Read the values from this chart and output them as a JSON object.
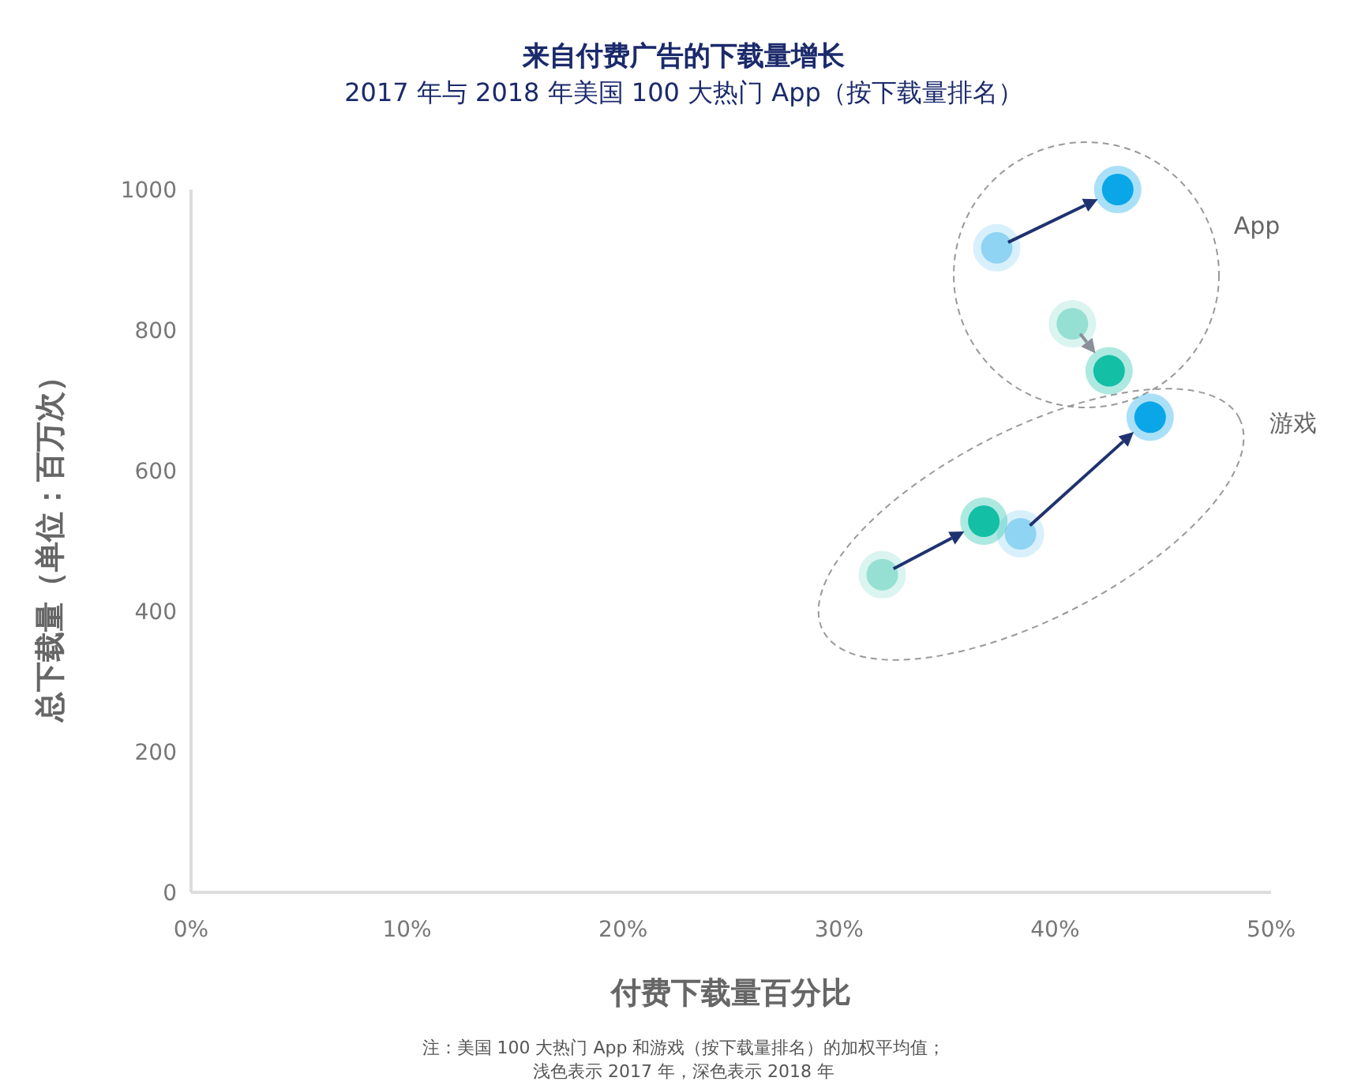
{
  "chart_data": {
    "type": "scatter",
    "title": "来自付费广告的下载量增长",
    "subtitle": "2017 年与 2018 年美国 100 大热门 App（按下载量排名）",
    "xlabel": "付费下载量百分比",
    "ylabel": "总下载量（单位：百万次）",
    "xlim": [
      0,
      50
    ],
    "xticks": [
      {
        "value": 0,
        "label": "0%"
      },
      {
        "value": 10,
        "label": "10%"
      },
      {
        "value": 20,
        "label": "20%"
      },
      {
        "value": 30,
        "label": "30%"
      },
      {
        "value": 40,
        "label": "40%"
      },
      {
        "value": 50,
        "label": "50%"
      }
    ],
    "ylim": [
      0,
      1000
    ],
    "yticks": [
      0,
      200,
      400,
      600,
      800,
      1000
    ],
    "grid": false,
    "marker": "circle",
    "series": [
      {
        "color": "#8fd5f3",
        "x": [
          37.3,
          38.4
        ],
        "values": [
          917,
          510
        ]
      },
      {
        "color": "#0aa6e8",
        "x": [
          42.9,
          44.4
        ],
        "values": [
          1000,
          676
        ]
      },
      {
        "color": "#95e0d3",
        "x": [
          40.8,
          32.0
        ],
        "values": [
          809,
          452
        ]
      },
      {
        "color": "#13bfa5",
        "x": [
          42.5,
          36.7
        ],
        "values": [
          742,
          528
        ]
      }
    ],
    "annotations": [
      "App",
      "游戏",
      "注：美国 100 大热门 App 和游戏（按下载量排名）的加权平均值；",
      "浅色表示 2017 年，深色表示 2018 年"
    ]
  }
}
